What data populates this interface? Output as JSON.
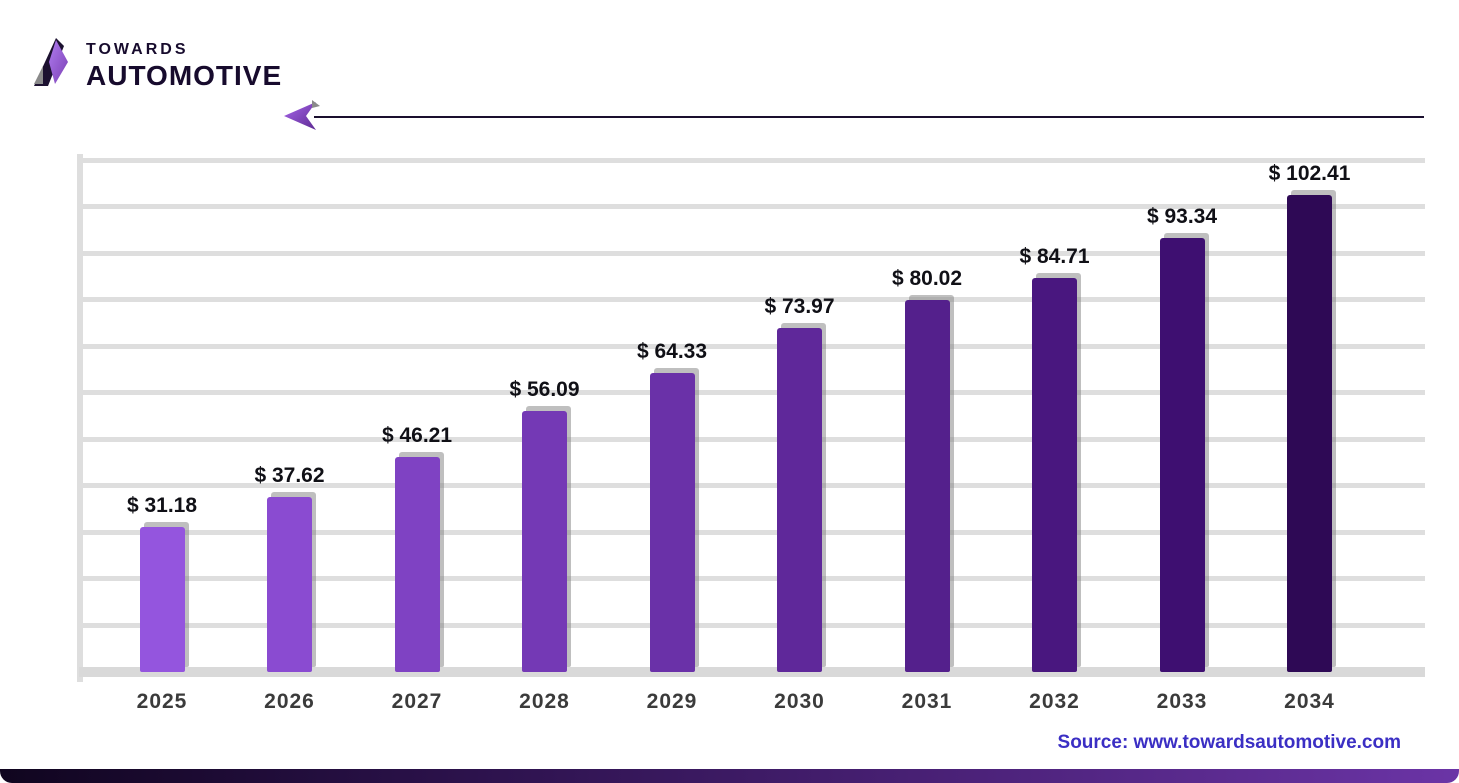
{
  "brand": {
    "name_top": "TOWARDS",
    "name_bottom": "AUTOMOTIVE"
  },
  "source": {
    "label": "Source: www.towardsautomotive.com"
  },
  "colors": {
    "accent_purple": "#7a3fb3",
    "brand_dark": "#170b2d",
    "gridline": "#dedede",
    "value_label": "#101016",
    "year_label": "#3b3b3b",
    "source_text": "#3b2fc4",
    "bottom_bar_gradient": [
      "#10051f",
      "#6b34a6"
    ]
  },
  "chart_data": {
    "type": "bar",
    "title": "",
    "categories": [
      "2025",
      "2026",
      "2027",
      "2028",
      "2029",
      "2030",
      "2031",
      "2032",
      "2033",
      "2034"
    ],
    "values": [
      31.18,
      37.62,
      46.21,
      56.09,
      64.33,
      73.97,
      80.02,
      84.71,
      93.34,
      102.41
    ],
    "bar_labels": [
      "$ 31.18",
      "$ 37.62",
      "$ 46.21",
      "$ 56.09",
      "$ 64.33",
      "$ 73.97",
      "$ 80.02",
      "$ 84.71",
      "$ 93.34",
      "$ 102.41"
    ],
    "bar_colors": [
      "#9455DE",
      "#8A4BD1",
      "#7F42C3",
      "#7439B5",
      "#6A31A8",
      "#5F289A",
      "#54208C",
      "#49177F",
      "#3E0F71",
      "#2E0955"
    ],
    "xlabel": "",
    "ylabel": "",
    "ylim": [
      0,
      110
    ],
    "gridline_step": 10,
    "grid": true,
    "legend": false
  }
}
